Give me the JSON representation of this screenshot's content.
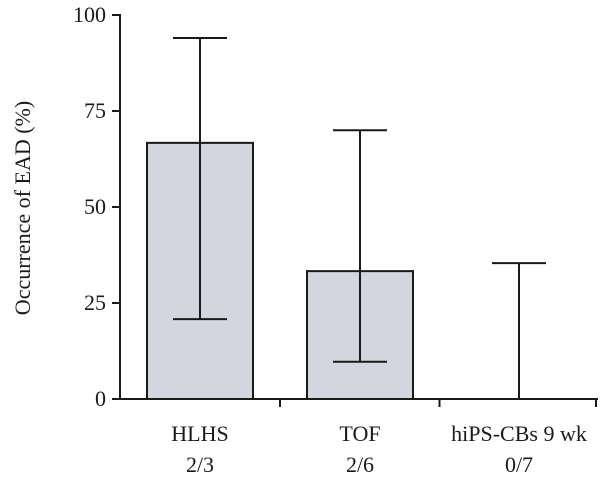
{
  "chart_data": {
    "type": "bar",
    "categories": [
      "HLHS",
      "TOF",
      "hiPS-CBs 9 wk"
    ],
    "category_sublabels": [
      "2/3",
      "2/6",
      "0/7"
    ],
    "values": [
      66.7,
      33.3,
      0
    ],
    "error_low": [
      20.8,
      9.7,
      0
    ],
    "error_high": [
      94.0,
      70.0,
      35.4
    ],
    "xlabel": "",
    "ylabel": "Occurrence of EAD (%)",
    "ylim": [
      0,
      100
    ],
    "yticks": [
      0,
      25,
      50,
      75,
      100
    ],
    "grid": false,
    "bar_fill": "#d3d6dd",
    "bar_stroke": "#1a1a1a"
  }
}
